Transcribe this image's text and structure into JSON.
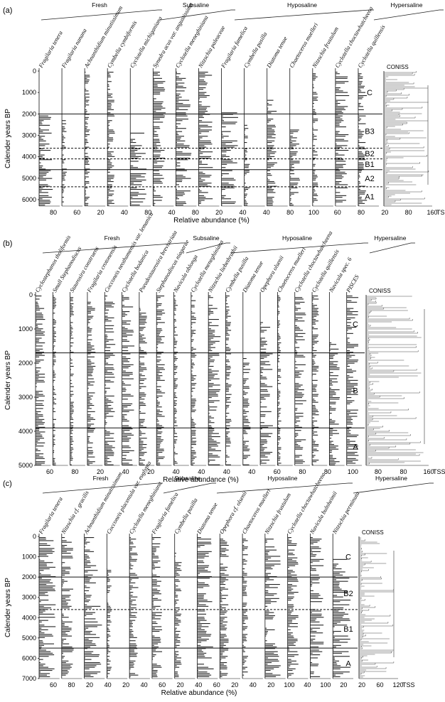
{
  "panels": [
    {
      "id": "a",
      "letter": "(a)",
      "y_label": "Calender years BP",
      "x_label": "Relative abundance (%)",
      "tss_label": "TSS",
      "coniss_label": "CONISS",
      "groups": [
        {
          "name": "Fresh",
          "from": 0,
          "to": 8
        },
        {
          "name": "Subsaline",
          "from": 8,
          "to": 14
        },
        {
          "name": "Hyposaline",
          "from": 14,
          "to": 16
        },
        {
          "name": "Hypersaline",
          "from": 16,
          "to": 18
        }
      ],
      "taxa": [
        "Fragilaria tenera",
        "Fragilaria nanana",
        "Achnanthidium minutissimum",
        "Cymbella cymbiformis",
        "Cyclotella michiganiana",
        "Synedra acus var. angustissima",
        "Cyclotella meneghiniana",
        "Nitzschia paleaceae",
        "Fragilaria famelica",
        "Cymbella pusilla",
        "Diatoma tenue",
        "Chaetoceros muelleri",
        "Nitzschia frustulum",
        "Cyclotella choctawhatcheena",
        "Cyclotella quillensis"
      ],
      "y_ticks": [
        "0",
        "1000",
        "2000",
        "3000",
        "4000",
        "5000",
        "6000"
      ],
      "x_ticks": [
        "80",
        "60",
        "20",
        "40",
        "80",
        "40",
        "80",
        "20",
        "40",
        "40",
        "80",
        "100",
        "60",
        "80",
        "20",
        "80",
        "160"
      ],
      "zones": [
        "C",
        "B3",
        "B2",
        "B1",
        "A2",
        "A1"
      ],
      "boundaries": [
        {
          "age": 2000,
          "style": "solid"
        },
        {
          "age": 3600,
          "style": "dashed"
        },
        {
          "age": 4100,
          "style": "dashed"
        },
        {
          "age": 4600,
          "style": "solid"
        },
        {
          "age": 5400,
          "style": "dashed"
        }
      ]
    },
    {
      "id": "b",
      "letter": "(b)",
      "y_label": "Calender years BP",
      "x_label": "Relative abundance (%)",
      "tss_label": "TSS",
      "coniss_label": "CONISS",
      "groups": [
        {
          "name": "Fresh",
          "from": 0,
          "to": 11
        },
        {
          "name": "Subsaline",
          "from": 11,
          "to": 14
        },
        {
          "name": "Hyposaline",
          "from": 14,
          "to": 18
        },
        {
          "name": "Hypersaline",
          "from": 18,
          "to": 20
        }
      ],
      "taxa": [
        "Cyclostephanos tholiformis",
        "Small Stephanodiscus",
        "Staurosira construens",
        "Fragilaria crotonensis",
        "Cocconeis neothumensis var. lemanica",
        "Cyclotella bodanica",
        "Pseudostaurosira brevistriata",
        "Stephanodiscus niagarae",
        "Navicula oblonga",
        "Cyclotella meneghiniana",
        "Nitzschia liebethruthii",
        "Cymbella pusilla",
        "Diatoma tenue",
        "Opephora olsenii",
        "Chaetoceros muelleri",
        "Cyclotella choctawhatcheena",
        "Cyclotella quillensis",
        "Navicula spec. 6",
        "PISCES"
      ],
      "y_ticks": [
        "0",
        "1000",
        "2000",
        "3000",
        "4000",
        "5000"
      ],
      "x_ticks": [
        "60",
        "80",
        "20",
        "40",
        "20",
        "40",
        "40",
        "40",
        "40",
        "60",
        "80",
        "80",
        "100",
        "80",
        "80",
        "160"
      ],
      "zones": [
        "C",
        "B",
        "A"
      ],
      "boundaries": [
        {
          "age": 1700,
          "style": "solid"
        },
        {
          "age": 3900,
          "style": "solid"
        }
      ]
    },
    {
      "id": "c",
      "letter": "(c)",
      "y_label": "Calender years BP",
      "x_label": "Relative abundance (%)",
      "tss_label": "TSS",
      "coniss_label": "CONISS",
      "groups": [
        {
          "name": "Fresh",
          "from": 0,
          "to": 6
        },
        {
          "name": "Subsaline",
          "from": 6,
          "to": 9
        },
        {
          "name": "Hyposaline",
          "from": 9,
          "to": 14
        },
        {
          "name": "Hypersaline",
          "from": 14,
          "to": 16
        }
      ],
      "taxa": [
        "Fragilaria tenera",
        "Nitzschia cf. gracilis",
        "Achnanthidium minutissimum",
        "Cocconeis placentula var. euglypta",
        "Cyclotella meneghiniana",
        "Fragilaria famelica",
        "Cymbella pusilla",
        "Diatoma tenue",
        "Opephora cf. olsenii",
        "Chaetoceros muelleri",
        "Nitzschia frustulum",
        "Cyclotella choctawhatcheena",
        "Navicula bulnheimii",
        "Nitzschia perminuta"
      ],
      "y_ticks": [
        "0",
        "1000",
        "2000",
        "3000",
        "4000",
        "5000",
        "6000",
        "7000"
      ],
      "x_ticks": [
        "60",
        "80",
        "20",
        "40",
        "20",
        "40",
        "60",
        "20",
        "40",
        "60",
        "20",
        "40",
        "20",
        "100",
        "40",
        "100",
        "20",
        "20",
        "60",
        "120"
      ],
      "zones": [
        "C",
        "B2",
        "B1",
        "A"
      ],
      "boundaries": [
        {
          "age": 2000,
          "style": "solid"
        },
        {
          "age": 3600,
          "style": "dashed"
        },
        {
          "age": 5500,
          "style": "solid"
        }
      ]
    }
  ]
}
